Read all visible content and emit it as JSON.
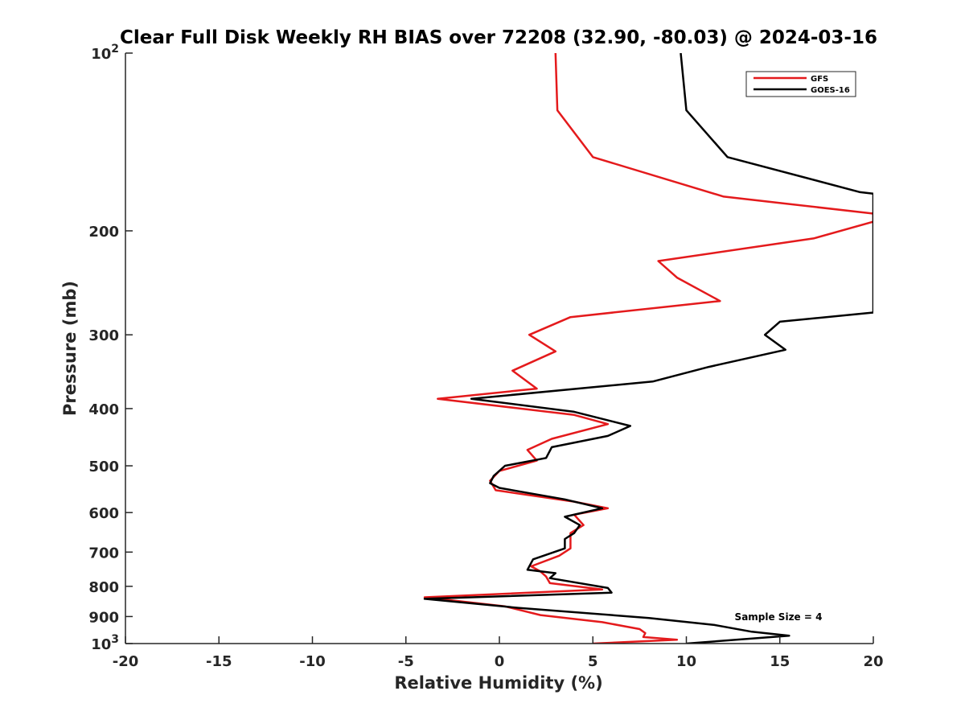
{
  "chart_data": {
    "type": "line",
    "title": "Clear Full Disk Weekly RH BIAS over 72208 (32.90, -80.03) @ 2024-03-16",
    "xlabel": "Relative Humidity (%)",
    "ylabel": "Pressure (mb)",
    "xlim": [
      -20,
      20
    ],
    "ylim": [
      100,
      1000
    ],
    "y_scale": "log",
    "y_reversed": true,
    "x_ticks": [
      -20,
      -15,
      -10,
      -5,
      0,
      5,
      10,
      15,
      20
    ],
    "x_tick_labels": [
      "-20",
      "-15",
      "-10",
      "-5",
      "0",
      "5",
      "10",
      "15",
      "20"
    ],
    "y_ticks": [
      100,
      200,
      300,
      400,
      500,
      600,
      700,
      800,
      900,
      1000
    ],
    "y_tick_labels": [
      {
        "base": "10",
        "exp": "2"
      },
      {
        "base": "200",
        "exp": ""
      },
      {
        "base": "300",
        "exp": ""
      },
      {
        "base": "400",
        "exp": ""
      },
      {
        "base": "500",
        "exp": ""
      },
      {
        "base": "600",
        "exp": ""
      },
      {
        "base": "700",
        "exp": ""
      },
      {
        "base": "800",
        "exp": ""
      },
      {
        "base": "900",
        "exp": ""
      },
      {
        "base": "10",
        "exp": "3"
      }
    ],
    "grid": false,
    "legend_position": "top-right",
    "annotation": "Sample Size = 4",
    "series": [
      {
        "name": "GFS",
        "color": "#e41a1c",
        "points": [
          [
            3.0,
            100
          ],
          [
            3.1,
            125
          ],
          [
            5.0,
            150
          ],
          [
            12.0,
            175
          ],
          [
            20.0,
            187
          ],
          [
            20.0,
            193
          ],
          [
            16.8,
            206
          ],
          [
            8.5,
            225
          ],
          [
            9.5,
            240
          ],
          [
            11.8,
            263
          ],
          [
            3.8,
            280
          ],
          [
            1.6,
            300
          ],
          [
            3.0,
            320
          ],
          [
            0.7,
            345
          ],
          [
            2.0,
            370
          ],
          [
            -3.3,
            385
          ],
          [
            4.0,
            410
          ],
          [
            5.8,
            425
          ],
          [
            2.8,
            450
          ],
          [
            1.5,
            470
          ],
          [
            2.0,
            490
          ],
          [
            0.0,
            510
          ],
          [
            -0.5,
            530
          ],
          [
            -0.2,
            550
          ],
          [
            4.0,
            575
          ],
          [
            5.8,
            590
          ],
          [
            4.0,
            605
          ],
          [
            4.5,
            630
          ],
          [
            3.8,
            650
          ],
          [
            3.8,
            670
          ],
          [
            3.8,
            690
          ],
          [
            3.2,
            710
          ],
          [
            1.7,
            740
          ],
          [
            2.2,
            755
          ],
          [
            2.5,
            770
          ],
          [
            2.7,
            790
          ],
          [
            5.5,
            810
          ],
          [
            -4.0,
            835
          ],
          [
            0.3,
            865
          ],
          [
            2.2,
            895
          ],
          [
            5.5,
            920
          ],
          [
            7.5,
            945
          ],
          [
            7.8,
            960
          ],
          [
            7.7,
            975
          ],
          [
            9.5,
            985
          ],
          [
            5.0,
            1000
          ]
        ]
      },
      {
        "name": "GOES-16",
        "color": "#000000",
        "points": [
          [
            9.7,
            100
          ],
          [
            10.0,
            125
          ],
          [
            12.2,
            150
          ],
          [
            19.3,
            172
          ],
          [
            20.0,
            173
          ],
          [
            20.0,
            275
          ],
          [
            15.0,
            285
          ],
          [
            14.2,
            300
          ],
          [
            15.3,
            318
          ],
          [
            11.2,
            340
          ],
          [
            8.2,
            360
          ],
          [
            -1.5,
            385
          ],
          [
            4.0,
            405
          ],
          [
            7.0,
            428
          ],
          [
            5.8,
            445
          ],
          [
            2.8,
            465
          ],
          [
            2.5,
            485
          ],
          [
            0.3,
            500
          ],
          [
            -0.3,
            520
          ],
          [
            -0.5,
            535
          ],
          [
            0.0,
            545
          ],
          [
            3.5,
            570
          ],
          [
            5.5,
            590
          ],
          [
            3.5,
            610
          ],
          [
            4.3,
            630
          ],
          [
            4.0,
            650
          ],
          [
            3.5,
            665
          ],
          [
            3.5,
            690
          ],
          [
            1.8,
            720
          ],
          [
            1.5,
            750
          ],
          [
            3.0,
            760
          ],
          [
            2.7,
            775
          ],
          [
            5.8,
            805
          ],
          [
            6.0,
            820
          ],
          [
            -4.0,
            840
          ],
          [
            1.0,
            870
          ],
          [
            8.0,
            905
          ],
          [
            11.5,
            930
          ],
          [
            13.5,
            955
          ],
          [
            15.5,
            970
          ],
          [
            10.0,
            1000
          ]
        ]
      }
    ]
  }
}
